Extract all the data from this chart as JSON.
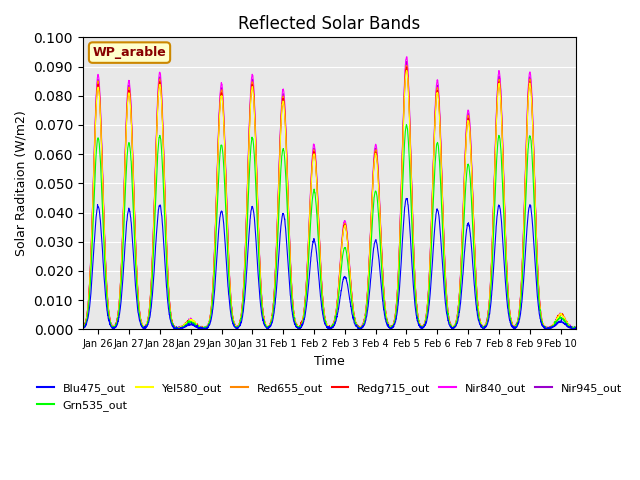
{
  "title": "Reflected Solar Bands",
  "xlabel": "Time",
  "ylabel": "Solar Raditaion (W/m2)",
  "annotation": "WP_arable",
  "ylim": [
    0,
    0.1
  ],
  "yticks": [
    0.0,
    0.01,
    0.02,
    0.03,
    0.04,
    0.05,
    0.06,
    0.07,
    0.08,
    0.09,
    0.1
  ],
  "day_labels": [
    "Jan 26",
    "Jan 27",
    "Jan 28",
    "Jan 29",
    "Jan 30",
    "Jan 31",
    "Feb 1",
    "Feb 2",
    "Feb 3",
    "Feb 4",
    "Feb 5",
    "Feb 6",
    "Feb 7",
    "Feb 8",
    "Feb 9",
    "Feb 10"
  ],
  "series_colors": {
    "Blu475_out": "#0000ff",
    "Grn535_out": "#00ff00",
    "Yel580_out": "#ffff00",
    "Red655_out": "#ff8800",
    "Redg715_out": "#ff0000",
    "Nir840_out": "#ff00ff",
    "Nir945_out": "#9900cc"
  },
  "nir840_peaks": [
    0.087,
    0.085,
    0.088,
    0.003,
    0.084,
    0.087,
    0.082,
    0.063,
    0.037,
    0.063,
    0.093,
    0.085,
    0.075,
    0.088,
    0.088,
    0.005
  ],
  "background_color": "#e8e8e8",
  "title_fontsize": 12,
  "annotation_facecolor": "#ffffcc",
  "annotation_edgecolor": "#cc8800",
  "annotation_textcolor": "#880000"
}
